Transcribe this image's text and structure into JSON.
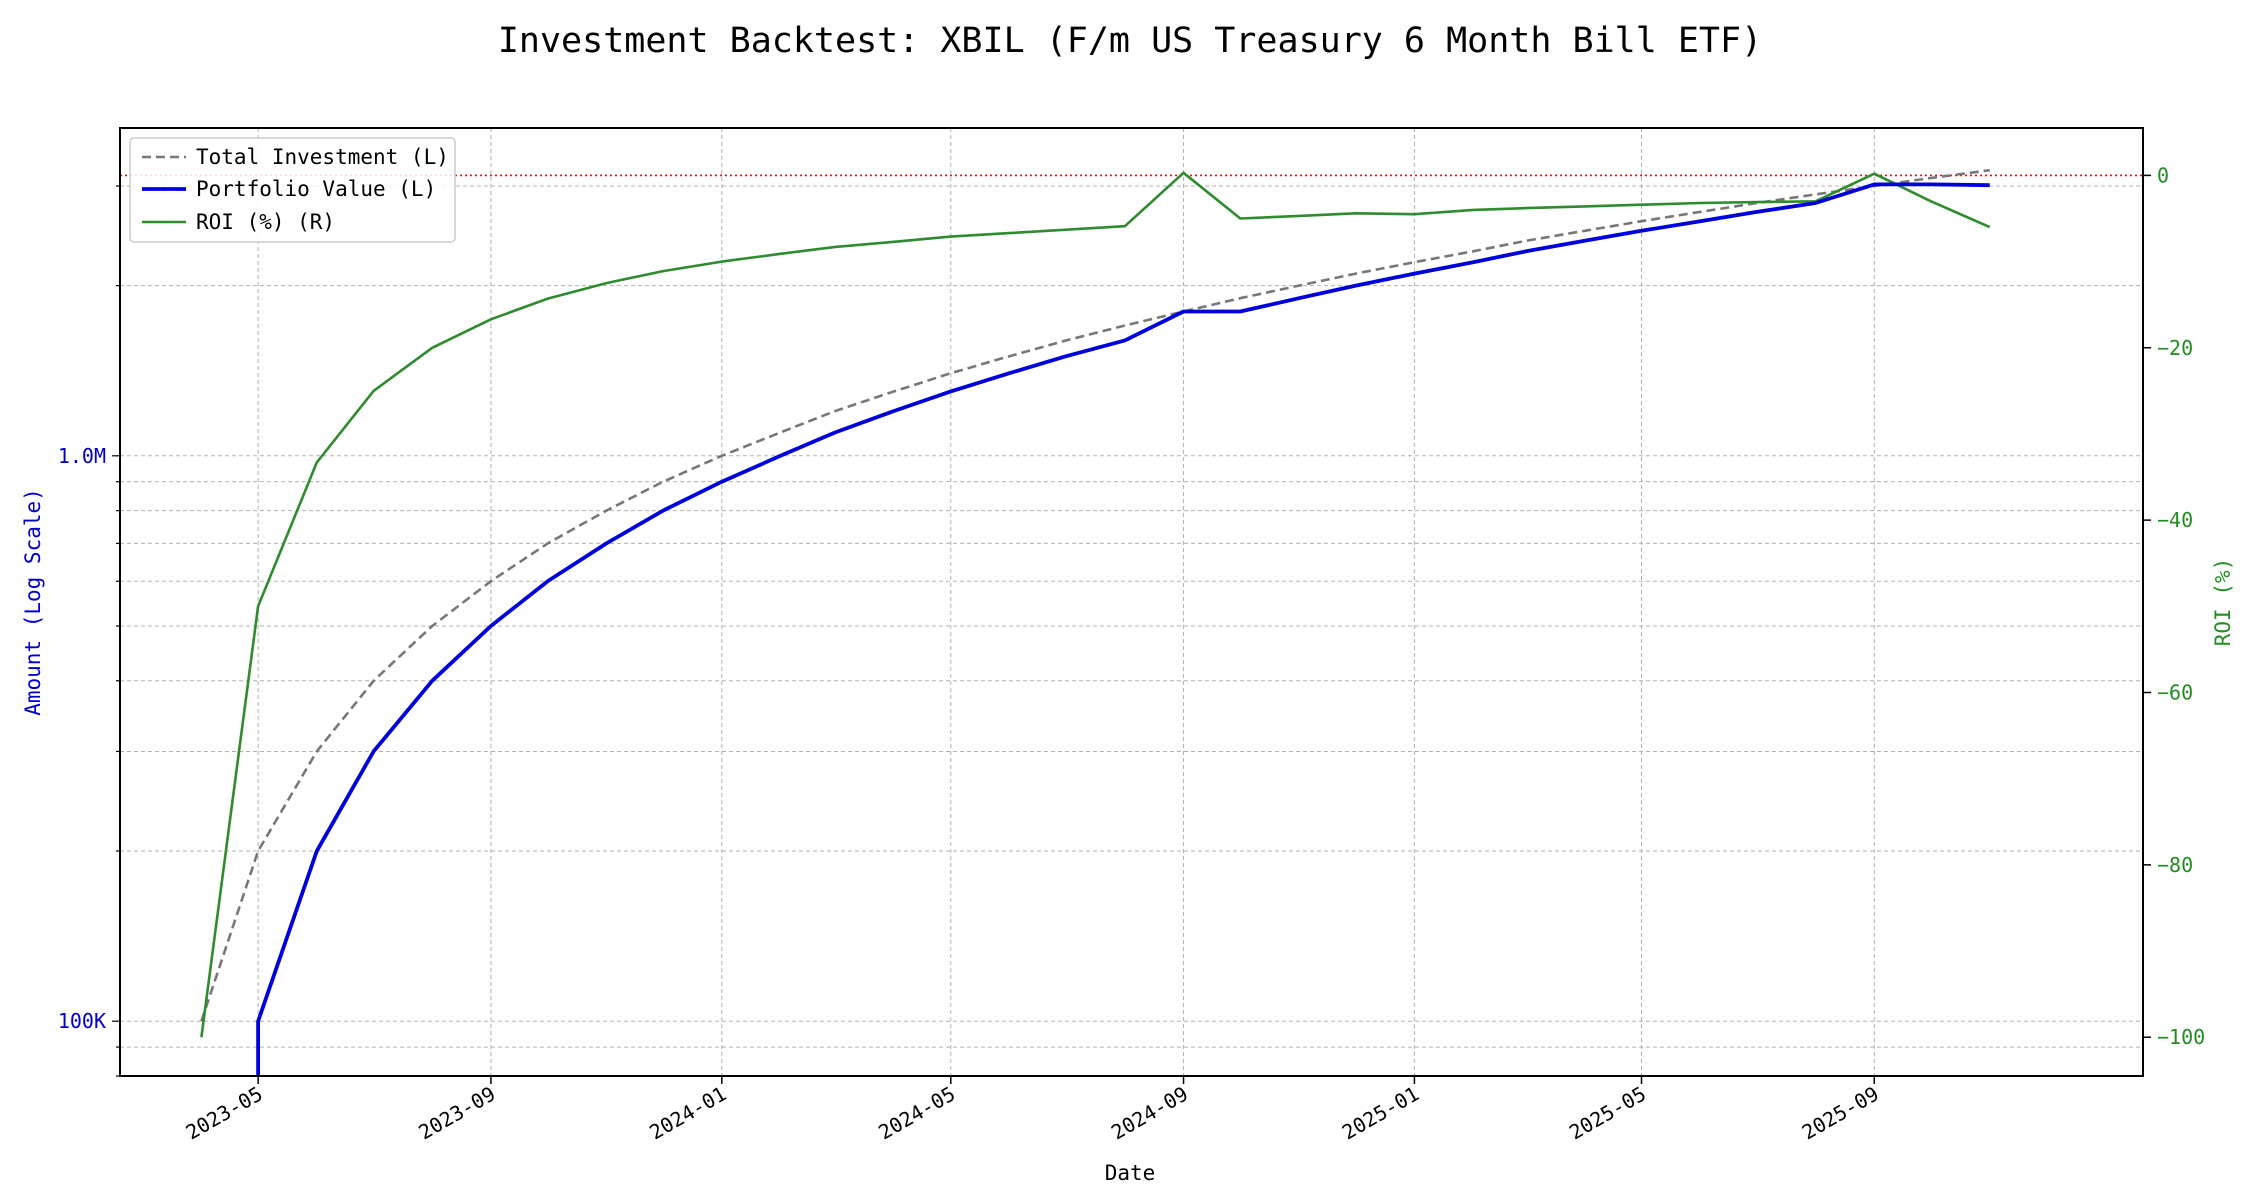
{
  "chart_data": {
    "type": "line",
    "title": "Investment Backtest: XBIL (F/m US Treasury 6 Month Bill ETF)",
    "xlabel": "Date",
    "ylabel_left": "Amount (Log Scale)",
    "ylabel_right": "ROI (%)",
    "y_left_scale": "log",
    "y_left_range": [
      80000,
      3800000
    ],
    "y_right_range": [
      -104.5,
      5.5
    ],
    "x_range": [
      "2023-02-17",
      "2026-01-21"
    ],
    "x_ticks": [
      "2023-05-01",
      "2023-09-01",
      "2024-01-01",
      "2024-05-01",
      "2024-09-01",
      "2025-01-01",
      "2025-05-01",
      "2025-09-01"
    ],
    "x_tick_labels": [
      "2023-05",
      "2023-09",
      "2024-01",
      "2024-05",
      "2024-09",
      "2025-01",
      "2025-05",
      "2025-09"
    ],
    "y_left_ticks": [
      100000,
      1000000
    ],
    "y_left_tick_labels": [
      "100K",
      "1.0M"
    ],
    "y_right_ticks": [
      0,
      -20,
      -40,
      -60,
      -80,
      -100
    ],
    "y_right_tick_labels": [
      "0",
      "−20",
      "−40",
      "−60",
      "−80",
      "−100"
    ],
    "grid": true,
    "legend_position": "top-left",
    "reference_line": {
      "axis": "right",
      "value": 0,
      "color": "#ff0000",
      "style": "dotted"
    },
    "series": [
      {
        "name": "Total Investment (L)",
        "axis": "left",
        "color": "#777777",
        "style": "dashed",
        "x": [
          "2023-04-01",
          "2023-05-01",
          "2023-06-01",
          "2023-07-01",
          "2023-08-01",
          "2023-09-01",
          "2023-10-01",
          "2023-11-01",
          "2023-12-01",
          "2024-01-01",
          "2024-02-01",
          "2024-03-01",
          "2024-04-01",
          "2024-05-01",
          "2024-06-01",
          "2024-07-01",
          "2024-08-01",
          "2024-09-01",
          "2024-10-01",
          "2024-11-01",
          "2024-12-01",
          "2025-01-01",
          "2025-02-01",
          "2025-03-01",
          "2025-04-01",
          "2025-05-01",
          "2025-06-01",
          "2025-07-01",
          "2025-08-01",
          "2025-09-01",
          "2025-10-01",
          "2025-11-01"
        ],
        "y": [
          100000,
          200000,
          300000,
          400000,
          500000,
          600000,
          700000,
          800000,
          900000,
          1000000,
          1100000,
          1200000,
          1300000,
          1400000,
          1500000,
          1600000,
          1700000,
          1800000,
          1900000,
          2000000,
          2100000,
          2200000,
          2300000,
          2400000,
          2500000,
          2600000,
          2700000,
          2800000,
          2900000,
          3000000,
          3100000,
          3200000
        ]
      },
      {
        "name": "Portfolio Value (L)",
        "axis": "left",
        "color": "#0000dd",
        "style": "solid",
        "x": [
          "2023-05-01",
          "2023-05-01",
          "2023-06-01",
          "2023-07-01",
          "2023-08-01",
          "2023-09-01",
          "2023-10-01",
          "2023-11-01",
          "2023-12-01",
          "2024-01-01",
          "2024-02-01",
          "2024-03-01",
          "2024-04-01",
          "2024-05-01",
          "2024-06-01",
          "2024-07-01",
          "2024-08-01",
          "2024-09-01",
          "2024-10-01",
          "2024-11-01",
          "2024-12-01",
          "2025-01-01",
          "2025-02-01",
          "2025-03-01",
          "2025-04-01",
          "2025-05-01",
          "2025-06-01",
          "2025-07-01",
          "2025-08-01",
          "2025-09-01",
          "2025-10-01",
          "2025-11-01"
        ],
        "y": [
          80000,
          100000,
          200000,
          300000,
          400000,
          500000,
          600000,
          700000,
          800000,
          900000,
          1000000,
          1100000,
          1200000,
          1300000,
          1400000,
          1500000,
          1600000,
          1800000,
          1800000,
          1900000,
          2000000,
          2100000,
          2200000,
          2300000,
          2400000,
          2500000,
          2600000,
          2700000,
          2800000,
          3020000,
          3020000,
          3010000
        ]
      },
      {
        "name": "ROI (%) (R)",
        "axis": "right",
        "color": "#2e8b2e",
        "style": "solid",
        "x": [
          "2023-04-01",
          "2023-05-01",
          "2023-06-01",
          "2023-07-01",
          "2023-08-01",
          "2023-09-01",
          "2023-10-01",
          "2023-11-01",
          "2023-12-01",
          "2024-01-01",
          "2024-02-01",
          "2024-03-01",
          "2024-04-01",
          "2024-05-01",
          "2024-06-01",
          "2024-07-01",
          "2024-08-01",
          "2024-09-01",
          "2024-10-01",
          "2024-11-01",
          "2024-12-01",
          "2025-01-01",
          "2025-02-01",
          "2025-03-01",
          "2025-04-01",
          "2025-05-01",
          "2025-06-01",
          "2025-07-01",
          "2025-08-01",
          "2025-09-01",
          "2025-10-01",
          "2025-11-01"
        ],
        "y": [
          -100,
          -50,
          -33.3,
          -25,
          -20,
          -16.7,
          -14.3,
          -12.5,
          -11.1,
          -10,
          -9.1,
          -8.3,
          -7.7,
          -7.1,
          -6.7,
          -6.3,
          -5.9,
          0.3,
          -5.0,
          -4.7,
          -4.4,
          -4.5,
          -4.0,
          -3.8,
          -3.6,
          -3.4,
          -3.2,
          -3.1,
          -3.0,
          0.2,
          -3.0,
          -6.0
        ]
      }
    ]
  }
}
